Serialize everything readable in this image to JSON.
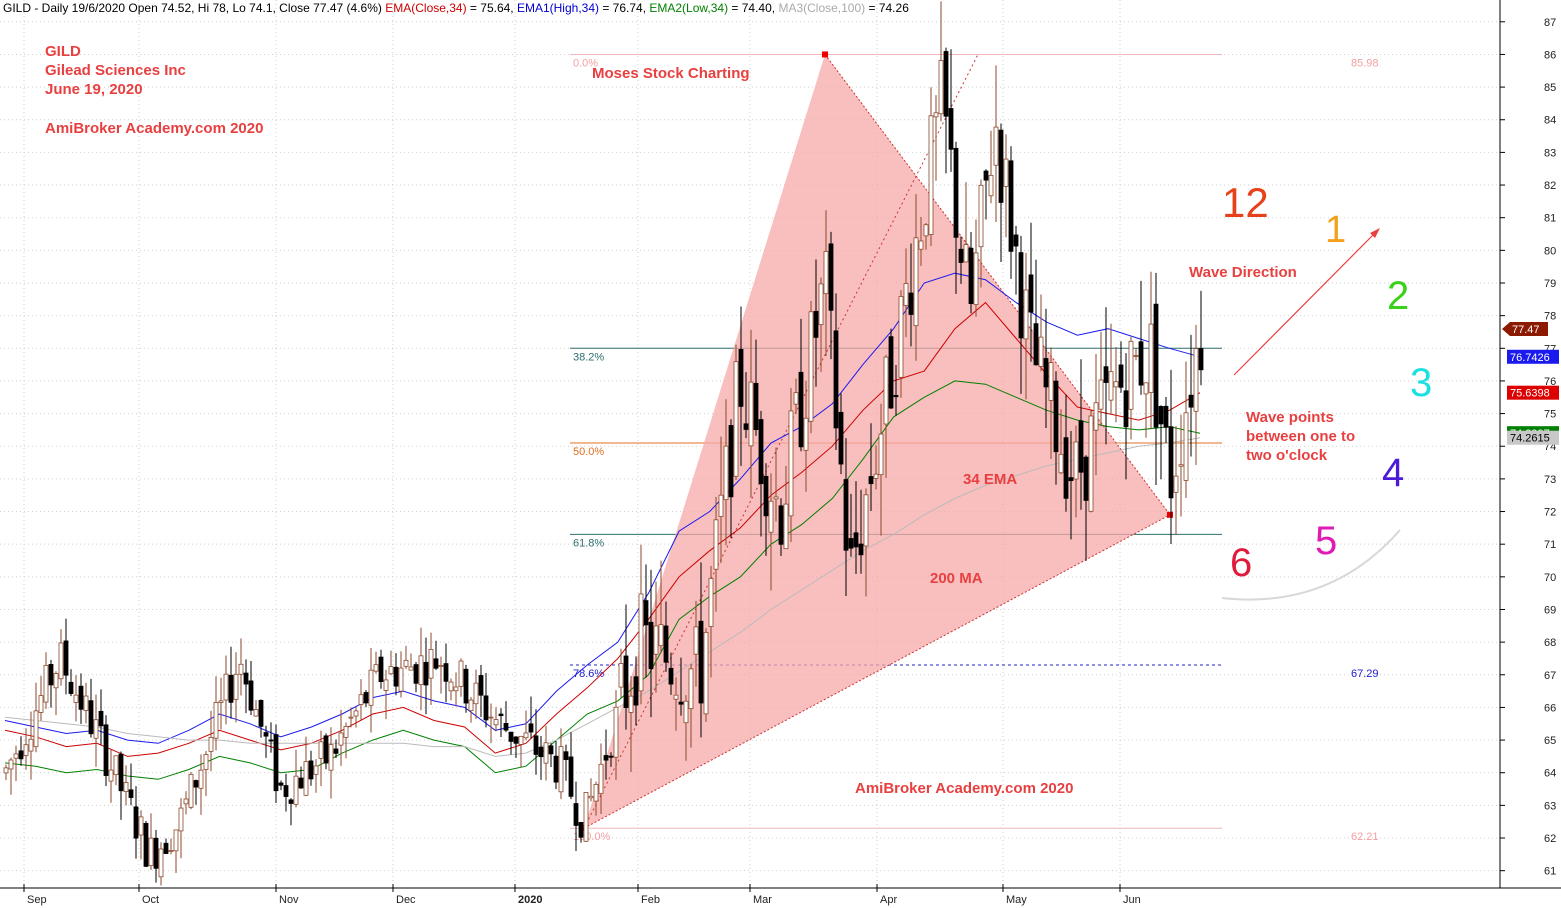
{
  "header": {
    "segments": [
      {
        "text": "GILD - Daily 19/6/2020 Open 74.52, Hi 78, Lo 74.1, Close 77.47 (4.6%) ",
        "color": "#000000"
      },
      {
        "text": "EMA(Close,34)",
        "color": "#cc0000"
      },
      {
        "text": " = 75.64, ",
        "color": "#000000"
      },
      {
        "text": "EMA1(High,34)",
        "color": "#0000cc"
      },
      {
        "text": " = 76.74, ",
        "color": "#000000"
      },
      {
        "text": "EMA2(Low,34)",
        "color": "#008000"
      },
      {
        "text": " = 74.40, ",
        "color": "#000000"
      },
      {
        "text": "MA3(Close,100)",
        "color": "#aaaaaa"
      },
      {
        "text": " = 74.26",
        "color": "#000000"
      }
    ]
  },
  "annotations": {
    "ticker": "GILD",
    "company": "Gilead Sciences Inc",
    "date": "June 19, 2020",
    "brand_top": "AmiBroker Academy.com  2020",
    "moses": "Moses Stock Charting",
    "wave_direction": "Wave Direction",
    "wave_points_1": "Wave points",
    "wave_points_2": "between one to",
    "wave_points_3": "two o'clock",
    "ema_label": "34 EMA",
    "ma_label": "200 MA",
    "brand_bottom": "AmiBroker Academy.com   2020"
  },
  "clock": [
    {
      "label": "12",
      "color": "#e8401a"
    },
    {
      "label": "1",
      "color": "#f2a11a"
    },
    {
      "label": "2",
      "color": "#3ad11a"
    },
    {
      "label": "3",
      "color": "#1ae0e0"
    },
    {
      "label": "4",
      "color": "#4a1ad8"
    },
    {
      "label": "5",
      "color": "#e01ab4"
    },
    {
      "label": "6",
      "color": "#e01a3c"
    }
  ],
  "fib": {
    "levels": [
      {
        "pct": "0.0%",
        "price": 86.0,
        "right_label": "85.98",
        "color": "#f4b6b6",
        "style": "solid"
      },
      {
        "pct": "38.2%",
        "price": 77.0,
        "right_label": "",
        "color": "#2f6f6f",
        "style": "solid"
      },
      {
        "pct": "50.0%",
        "price": 74.1,
        "right_label": "",
        "color": "#e07020",
        "style": "solid"
      },
      {
        "pct": "61.8%",
        "price": 71.3,
        "right_label": "",
        "color": "#2f6f6f",
        "style": "solid"
      },
      {
        "pct": "78.6%",
        "price": 67.3,
        "right_label": "67.29",
        "color": "#2020cc",
        "style": "dash"
      },
      {
        "pct": "100.0%",
        "price": 62.3,
        "right_label": "62.21",
        "color": "#f4b6b6",
        "style": "solid"
      }
    ]
  },
  "price_badges": [
    {
      "text": "77.47",
      "price": 77.47,
      "bg": "#8b1a00",
      "fg": "#ffffff"
    },
    {
      "text": "76.7426",
      "price": 76.74,
      "bg": "#1a1aee",
      "fg": "#ffffff"
    },
    {
      "text": "75.6398",
      "price": 75.64,
      "bg": "#dd0000",
      "fg": "#ffffff"
    },
    {
      "text": "74.3997",
      "price": 74.4,
      "bg": "#008000",
      "fg": "#ffffff"
    },
    {
      "text": "74.2615",
      "price": 74.26,
      "bg": "#c8c8c8",
      "fg": "#000000"
    }
  ],
  "chart_data": {
    "type": "candlestick",
    "title": "",
    "y_axis_ticks": [
      61,
      62,
      63,
      64,
      65,
      66,
      67,
      68,
      69,
      70,
      71,
      72,
      73,
      74,
      75,
      76,
      77,
      78,
      79,
      80,
      81,
      82,
      83,
      84,
      85,
      86,
      87
    ],
    "ylim": [
      60.5,
      87.3
    ],
    "x_ticks": [
      "Sep",
      "Oct",
      "Nov",
      "Dec",
      "2020",
      "Feb",
      "Mar",
      "Apr",
      "May",
      "Jun"
    ],
    "grid": true,
    "series": [
      {
        "name": "EMA(Close,34)",
        "color": "#cc0000",
        "values": [
          65.3,
          65.1,
          64.8,
          64.9,
          64.5,
          64.6,
          64.9,
          65.3,
          65.0,
          64.7,
          64.9,
          65.3,
          65.8,
          66.0,
          65.6,
          65.4,
          64.6,
          64.9,
          65.8,
          66.6,
          67.5,
          68.7,
          70.0,
          70.8,
          71.5,
          72.5,
          73.2,
          74.0,
          75.1,
          76.0,
          76.3,
          77.6,
          78.4,
          77.3,
          76.2,
          75.2,
          75.0,
          74.8,
          75.1,
          75.64
        ]
      },
      {
        "name": "EMA1(High,34)",
        "color": "#1a1aee",
        "values": [
          65.6,
          65.4,
          65.2,
          65.3,
          65.0,
          64.9,
          65.3,
          65.8,
          65.5,
          65.1,
          65.4,
          65.8,
          66.3,
          66.5,
          66.2,
          66.0,
          65.3,
          65.5,
          66.5,
          67.3,
          68.0,
          69.5,
          71.4,
          72.0,
          73.0,
          74.1,
          74.6,
          75.3,
          76.5,
          77.6,
          79.0,
          79.3,
          79.1,
          78.4,
          77.8,
          77.4,
          77.6,
          77.3,
          77.0,
          76.74
        ]
      },
      {
        "name": "EMA2(Low,34)",
        "color": "#008000",
        "values": [
          64.3,
          64.2,
          64.0,
          64.1,
          63.9,
          63.8,
          64.1,
          64.5,
          64.3,
          64.0,
          64.1,
          64.6,
          65.0,
          65.3,
          65.0,
          64.8,
          64.0,
          64.2,
          65.0,
          65.8,
          66.2,
          67.0,
          68.7,
          69.4,
          70.0,
          71.0,
          71.6,
          72.4,
          73.6,
          74.9,
          75.5,
          76.0,
          75.9,
          75.5,
          75.1,
          74.8,
          74.6,
          74.5,
          74.6,
          74.4
        ]
      },
      {
        "name": "MA3(Close,100)",
        "color": "#bbbbbb",
        "values": [
          65.7,
          65.6,
          65.5,
          65.4,
          65.2,
          65.1,
          65.0,
          65.0,
          64.9,
          64.9,
          64.9,
          64.9,
          64.9,
          64.9,
          64.8,
          64.8,
          64.5,
          64.6,
          65.0,
          65.5,
          66.0,
          66.5,
          67.1,
          67.7,
          68.3,
          69.0,
          69.6,
          70.2,
          70.8,
          71.3,
          71.9,
          72.4,
          72.8,
          73.1,
          73.4,
          73.6,
          73.8,
          74.0,
          74.1,
          74.26
        ]
      }
    ]
  }
}
